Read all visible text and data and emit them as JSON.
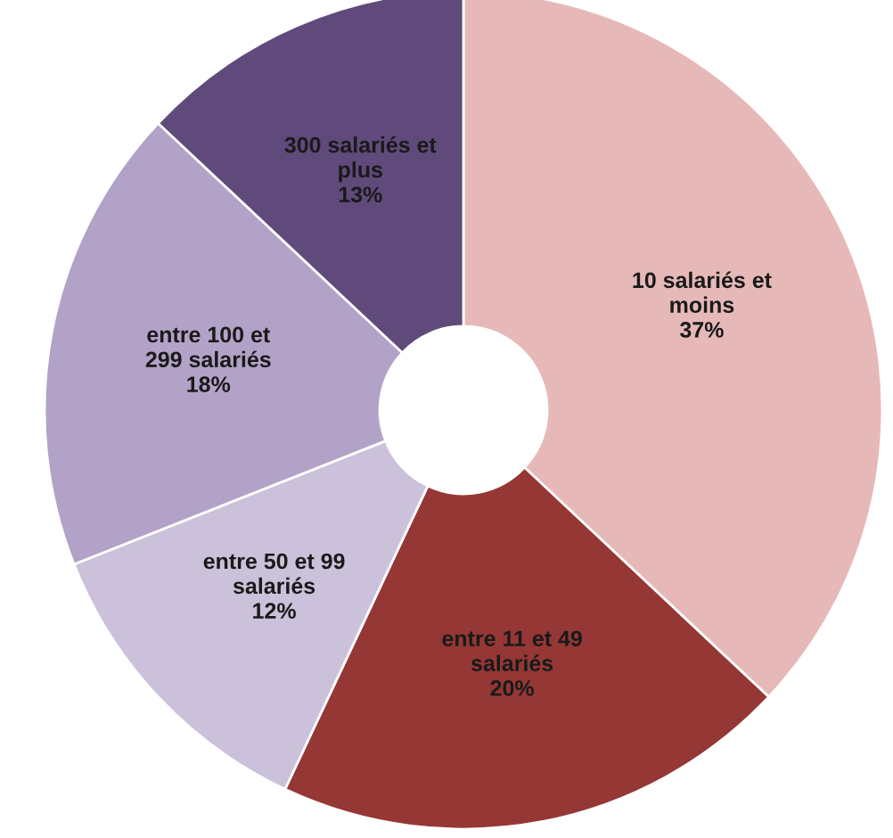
{
  "chart_data": {
    "type": "donut",
    "categories": [
      "10 salariés et\nmoins",
      "entre 11 et 49\nsalariés",
      "entre 50 et 99\nsalariés",
      "entre 100 et\n299 salariés",
      "300 salariés et\nplus"
    ],
    "values": [
      37,
      20,
      12,
      18,
      13
    ],
    "value_labels": [
      "37%",
      "20%",
      "12%",
      "18%",
      "13%"
    ],
    "colors": [
      "#e6b9b8",
      "#953735",
      "#ccc1da",
      "#b3a2c7",
      "#604a7b"
    ],
    "legend": false
  }
}
